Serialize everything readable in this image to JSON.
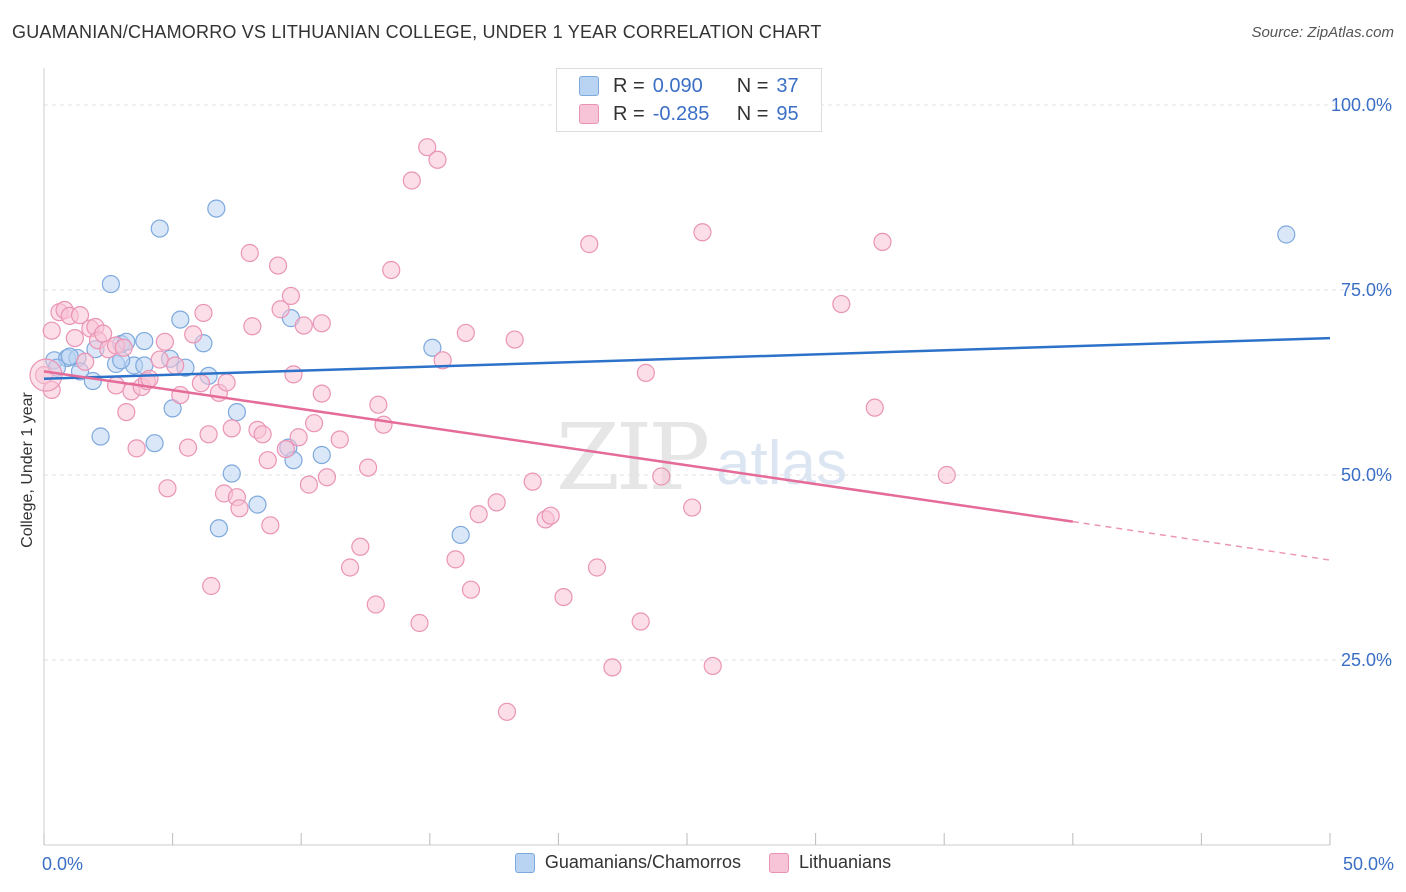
{
  "title": "GUAMANIAN/CHAMORRO VS LITHUANIAN COLLEGE, UNDER 1 YEAR CORRELATION CHART",
  "source": "Source: ZipAtlas.com",
  "watermark": {
    "zip": "ZIP",
    "atlas": "atlas"
  },
  "legend": {
    "rows": [
      {
        "r_label": "R =",
        "r_value": "0.090",
        "n_label": "N =",
        "n_value": "37"
      },
      {
        "r_label": "R =",
        "r_value": "-0.285",
        "n_label": "N =",
        "n_value": "95"
      }
    ]
  },
  "colors": {
    "blue_fill": "#b9d3f2",
    "blue_stroke": "#7ea9dd",
    "blue_line": "#2d72c9",
    "pink_fill": "#f7c3d6",
    "pink_stroke": "#ea94b5",
    "pink_line": "#e56b98",
    "tick_label": "#3b6fc5"
  },
  "chart_data": {
    "type": "scatter",
    "title": "GUAMANIAN/CHAMORRO VS LITHUANIAN COLLEGE, UNDER 1 YEAR CORRELATION CHART",
    "xlabel": "",
    "ylabel": "College, Under 1 year",
    "xlim": [
      0,
      50
    ],
    "ylim": [
      0,
      105
    ],
    "x_tick_labels": [
      {
        "value": 0,
        "label": "0.0%"
      },
      {
        "value": 50,
        "label": "50.0%"
      }
    ],
    "y_tick_labels": [
      {
        "value": 25,
        "label": "25.0%"
      },
      {
        "value": 50,
        "label": "50.0%"
      },
      {
        "value": 75,
        "label": "75.0%"
      },
      {
        "value": 100,
        "label": "100.0%"
      }
    ],
    "grid": true,
    "series": [
      {
        "name": "Guamanians/Chamorros",
        "r": 0.09,
        "n": 37,
        "trend": {
          "x": [
            0,
            50
          ],
          "y": [
            63.0,
            68.5
          ],
          "dashed_from": null
        },
        "points": [
          [
            0.4,
            65.5
          ],
          [
            0.9,
            65.8
          ],
          [
            1.3,
            65.8
          ],
          [
            1.4,
            64.0
          ],
          [
            1.9,
            62.7
          ],
          [
            2.0,
            67.0
          ],
          [
            2.2,
            55.2
          ],
          [
            2.6,
            75.8
          ],
          [
            2.8,
            65.0
          ],
          [
            3.0,
            67.7
          ],
          [
            3.2,
            68.0
          ],
          [
            3.5,
            64.8
          ],
          [
            3.9,
            64.8
          ],
          [
            3.9,
            68.1
          ],
          [
            4.3,
            54.3
          ],
          [
            4.5,
            83.3
          ],
          [
            4.9,
            65.7
          ],
          [
            5.0,
            59.0
          ],
          [
            5.3,
            71.0
          ],
          [
            5.5,
            64.5
          ],
          [
            6.2,
            67.8
          ],
          [
            6.4,
            63.4
          ],
          [
            6.7,
            86.0
          ],
          [
            6.8,
            42.8
          ],
          [
            7.3,
            50.2
          ],
          [
            7.5,
            58.5
          ],
          [
            8.3,
            46.0
          ],
          [
            9.5,
            53.7
          ],
          [
            9.6,
            71.2
          ],
          [
            9.7,
            52.0
          ],
          [
            10.8,
            52.7
          ],
          [
            15.1,
            67.2
          ],
          [
            16.2,
            41.9
          ],
          [
            48.3,
            82.5
          ],
          [
            0.5,
            64.5
          ],
          [
            1.0,
            66.0
          ],
          [
            3.0,
            65.5
          ]
        ]
      },
      {
        "name": "Lithuanians",
        "r": -0.285,
        "n": 95,
        "trend": {
          "x": [
            0,
            40,
            50
          ],
          "y": [
            64.0,
            43.7,
            38.5
          ],
          "dashed_from": 40
        },
        "points": [
          [
            0.0,
            63.5
          ],
          [
            0.3,
            69.5
          ],
          [
            0.6,
            72.0
          ],
          [
            0.8,
            72.3
          ],
          [
            1.0,
            71.5
          ],
          [
            1.4,
            71.6
          ],
          [
            1.6,
            65.3
          ],
          [
            1.8,
            69.8
          ],
          [
            2.0,
            70.0
          ],
          [
            2.1,
            68.2
          ],
          [
            2.3,
            69.1
          ],
          [
            2.5,
            67.0
          ],
          [
            2.8,
            67.5
          ],
          [
            2.8,
            62.1
          ],
          [
            3.1,
            67.2
          ],
          [
            3.2,
            58.5
          ],
          [
            3.4,
            61.3
          ],
          [
            3.6,
            53.6
          ],
          [
            3.8,
            61.9
          ],
          [
            4.0,
            62.7
          ],
          [
            4.1,
            63.0
          ],
          [
            4.5,
            65.6
          ],
          [
            4.7,
            68.0
          ],
          [
            4.8,
            48.2
          ],
          [
            5.1,
            64.8
          ],
          [
            5.3,
            60.8
          ],
          [
            5.6,
            53.7
          ],
          [
            5.8,
            69.0
          ],
          [
            6.1,
            62.4
          ],
          [
            6.2,
            71.9
          ],
          [
            6.4,
            55.5
          ],
          [
            6.5,
            35.0
          ],
          [
            6.8,
            61.1
          ],
          [
            7.0,
            47.5
          ],
          [
            7.1,
            62.5
          ],
          [
            7.3,
            56.3
          ],
          [
            7.5,
            47.0
          ],
          [
            7.6,
            45.5
          ],
          [
            8.0,
            80.0
          ],
          [
            8.1,
            70.1
          ],
          [
            8.3,
            56.1
          ],
          [
            8.5,
            55.5
          ],
          [
            8.7,
            52.0
          ],
          [
            8.8,
            43.2
          ],
          [
            9.1,
            78.3
          ],
          [
            9.2,
            72.4
          ],
          [
            9.4,
            53.5
          ],
          [
            9.6,
            74.2
          ],
          [
            9.7,
            63.6
          ],
          [
            9.9,
            55.1
          ],
          [
            10.1,
            70.2
          ],
          [
            10.3,
            48.7
          ],
          [
            10.5,
            57.0
          ],
          [
            10.8,
            61.0
          ],
          [
            10.8,
            70.5
          ],
          [
            11.0,
            49.7
          ],
          [
            11.5,
            54.8
          ],
          [
            11.9,
            37.5
          ],
          [
            12.3,
            40.3
          ],
          [
            12.6,
            51.0
          ],
          [
            12.9,
            32.5
          ],
          [
            13.0,
            59.5
          ],
          [
            13.2,
            56.8
          ],
          [
            13.5,
            77.7
          ],
          [
            14.3,
            89.8
          ],
          [
            14.6,
            30.0
          ],
          [
            14.9,
            94.3
          ],
          [
            15.3,
            92.6
          ],
          [
            15.5,
            65.5
          ],
          [
            16.0,
            38.6
          ],
          [
            16.4,
            69.2
          ],
          [
            16.6,
            34.5
          ],
          [
            16.9,
            44.7
          ],
          [
            17.6,
            46.3
          ],
          [
            18.0,
            18.0
          ],
          [
            18.3,
            68.3
          ],
          [
            19.0,
            49.1
          ],
          [
            19.5,
            44.0
          ],
          [
            19.7,
            44.5
          ],
          [
            20.2,
            33.5
          ],
          [
            21.2,
            81.2
          ],
          [
            21.5,
            37.5
          ],
          [
            22.1,
            24.0
          ],
          [
            23.2,
            30.2
          ],
          [
            23.4,
            63.8
          ],
          [
            24.0,
            49.8
          ],
          [
            25.2,
            45.6
          ],
          [
            25.6,
            82.8
          ],
          [
            26.0,
            24.2
          ],
          [
            31.0,
            73.1
          ],
          [
            32.3,
            59.1
          ],
          [
            32.6,
            81.5
          ],
          [
            35.1,
            50.0
          ],
          [
            0.3,
            61.5
          ],
          [
            1.2,
            68.5
          ]
        ]
      }
    ]
  }
}
